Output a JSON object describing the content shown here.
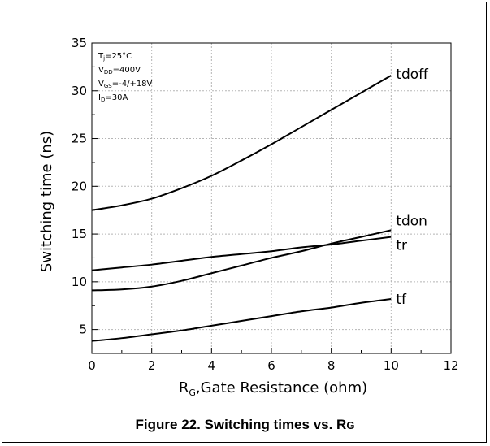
{
  "caption": {
    "text": "Figure 22. Switching times vs. R",
    "subscript": "G"
  },
  "chart_data": {
    "type": "line",
    "xlabel": {
      "main": "R",
      "sub": "G",
      "rest": ",Gate Resistance (ohm)"
    },
    "ylabel": "Switching time (ns)",
    "xlim": [
      0,
      12
    ],
    "ylim": [
      2.5,
      35
    ],
    "x_ticks": [
      "0",
      "2",
      "4",
      "6",
      "8",
      "10",
      "12"
    ],
    "y_ticks": [
      "5",
      "10",
      "15",
      "20",
      "25",
      "30",
      "35"
    ],
    "grid": true,
    "conditions": [
      {
        "main": "T",
        "sub": "j",
        "rest": "=25°C"
      },
      {
        "main": "V",
        "sub": "DD",
        "rest": "=400V"
      },
      {
        "main": "V",
        "sub": "GS",
        "rest": "=-4/+18V"
      },
      {
        "main": "I",
        "sub": "D",
        "rest": "=30A"
      }
    ],
    "x": [
      0,
      1,
      2,
      3,
      4,
      5,
      6,
      7,
      8,
      9,
      10
    ],
    "series": [
      {
        "name": "tdoff",
        "values": [
          17.5,
          18.0,
          18.7,
          19.8,
          21.1,
          22.7,
          24.4,
          26.2,
          28.0,
          29.8,
          31.6
        ]
      },
      {
        "name": "tdon",
        "values": [
          9.1,
          9.2,
          9.5,
          10.1,
          10.9,
          11.7,
          12.5,
          13.2,
          14.0,
          14.7,
          15.4
        ]
      },
      {
        "name": "tr",
        "values": [
          11.2,
          11.5,
          11.8,
          12.2,
          12.6,
          12.9,
          13.2,
          13.6,
          13.9,
          14.3,
          14.7
        ]
      },
      {
        "name": "tf",
        "values": [
          3.8,
          4.1,
          4.5,
          4.9,
          5.4,
          5.9,
          6.4,
          6.9,
          7.3,
          7.8,
          8.2
        ]
      }
    ]
  }
}
